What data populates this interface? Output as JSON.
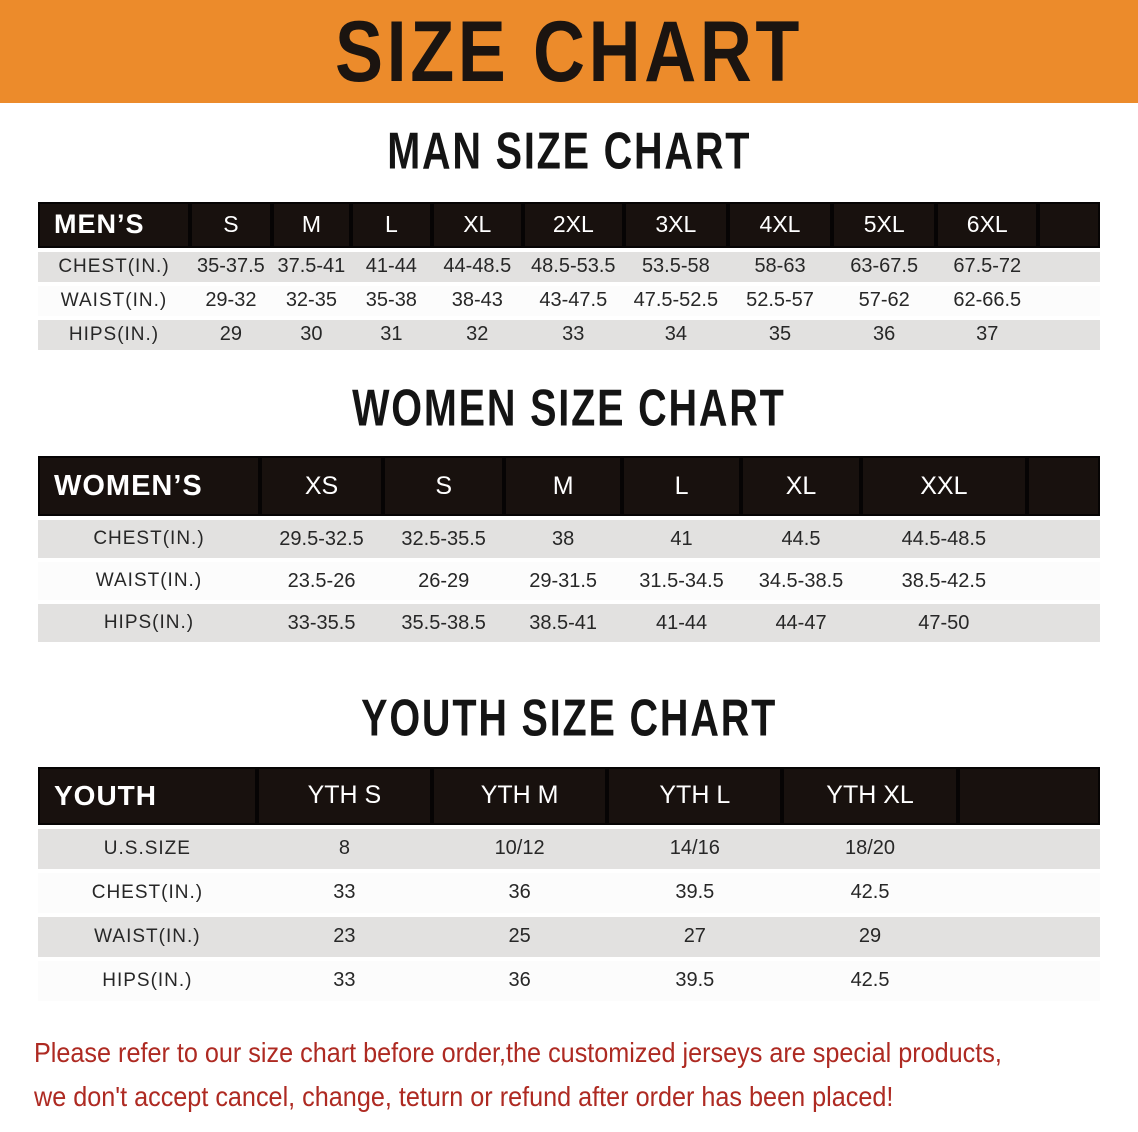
{
  "banner": {
    "title": "SIZE CHART"
  },
  "colors": {
    "banner_bg": "#ec8b2b",
    "table_header_bg": "#18110e",
    "row_gray": "#e2e1e0",
    "row_white": "#fcfcfc",
    "disclaimer_red": "#ae2a22",
    "heading_text": "#141414"
  },
  "sections": [
    {
      "heading": "MAN SIZE CHART",
      "table": {
        "title": "MEN’S",
        "columns": [
          "S",
          "M",
          "L",
          "XL",
          "2XL",
          "3XL",
          "4XL",
          "5XL",
          "6XL"
        ],
        "rows": [
          {
            "label": "CHEST(IN.)",
            "values": [
              "35-37.5",
              "37.5-41",
              "41-44",
              "44-48.5",
              "48.5-53.5",
              "53.5-58",
              "58-63",
              "63-67.5",
              "67.5-72"
            ]
          },
          {
            "label": "WAIST(IN.)",
            "values": [
              "29-32",
              "32-35",
              "35-38",
              "38-43",
              "43-47.5",
              "47.5-52.5",
              "52.5-57",
              "57-62",
              "62-66.5"
            ]
          },
          {
            "label": "HIPS(IN.)",
            "values": [
              "29",
              "30",
              "31",
              "32",
              "33",
              "34",
              "35",
              "36",
              "37"
            ]
          }
        ]
      }
    },
    {
      "heading": "WOMEN SIZE CHART",
      "table": {
        "title": "WOMEN’S",
        "columns": [
          "XS",
          "S",
          "M",
          "L",
          "XL",
          "XXL"
        ],
        "rows": [
          {
            "label": "CHEST(IN.)",
            "values": [
              "29.5-32.5",
              "32.5-35.5",
              "38",
              "41",
              "44.5",
              "44.5-48.5"
            ]
          },
          {
            "label": "WAIST(IN.)",
            "values": [
              "23.5-26",
              "26-29",
              "29-31.5",
              "31.5-34.5",
              "34.5-38.5",
              "38.5-42.5"
            ]
          },
          {
            "label": "HIPS(IN.)",
            "values": [
              "33-35.5",
              "35.5-38.5",
              "38.5-41",
              "41-44",
              "44-47",
              "47-50"
            ]
          }
        ]
      }
    },
    {
      "heading": "YOUTH SIZE CHART",
      "table": {
        "title": "YOUTH",
        "columns": [
          "YTH S",
          "YTH M",
          "YTH L",
          "YTH XL"
        ],
        "rows": [
          {
            "label": "U.S.SIZE",
            "values": [
              "8",
              "10/12",
              "14/16",
              "18/20"
            ]
          },
          {
            "label": "CHEST(IN.)",
            "values": [
              "33",
              "36",
              "39.5",
              "42.5"
            ]
          },
          {
            "label": "WAIST(IN.)",
            "values": [
              "23",
              "25",
              "27",
              "29"
            ]
          },
          {
            "label": "HIPS(IN.)",
            "values": [
              "33",
              "36",
              "39.5",
              "42.5"
            ]
          }
        ]
      }
    }
  ],
  "disclaimer": {
    "lines": [
      "Please refer to our size chart before order,the customized jerseys are special products,",
      "we don't accept cancel, change, teturn or refund after order has been placed!"
    ]
  }
}
